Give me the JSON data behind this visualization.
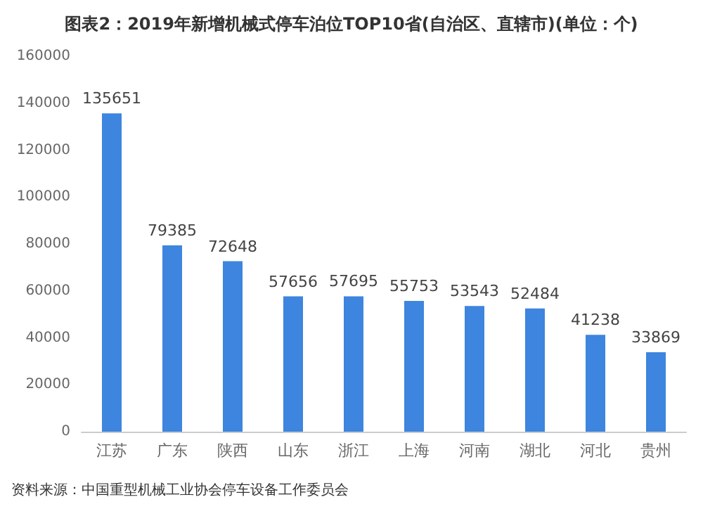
{
  "chart_data": {
    "type": "bar",
    "title": "图表2：2019年新增机械式停车泊位TOP10省(自治区、直辖市)(单位：个)",
    "categories": [
      "江苏",
      "广东",
      "陕西",
      "山东",
      "浙江",
      "上海",
      "河南",
      "湖北",
      "河北",
      "贵州"
    ],
    "values": [
      135651,
      79385,
      72648,
      57656,
      57695,
      55753,
      53543,
      52484,
      41238,
      33869
    ],
    "color": "#3d85de",
    "data_labels": true,
    "ylim": [
      0,
      160000
    ],
    "yticks": [
      0,
      20000,
      40000,
      60000,
      80000,
      100000,
      120000,
      140000,
      160000
    ],
    "annotations": [
      "资料来源：中国重型机械工业协会停车设备工作委员会"
    ]
  }
}
